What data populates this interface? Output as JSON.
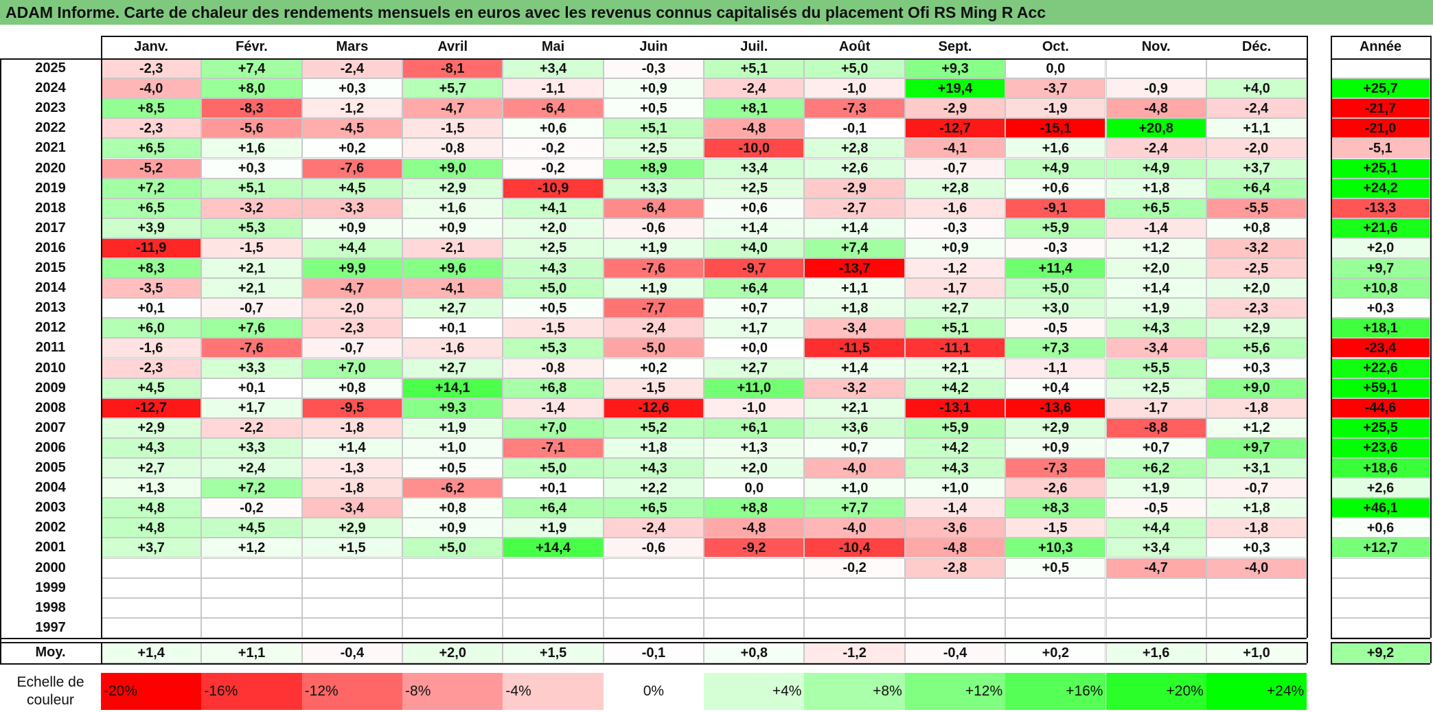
{
  "title": "ADAM Informe. Carte de chaleur des rendements mensuels en euros avec les revenus connus capitalisés du placement Ofi RS Ming R Acc",
  "colors": {
    "title_bg": "#7fc97f",
    "negative_max": "#ff0000",
    "zero": "#ffffff",
    "positive_max": "#00ff00"
  },
  "chart_data": {
    "type": "heatmap",
    "title": "ADAM Informe. Carte de chaleur des rendements mensuels en euros avec les revenus connus capitalisés du placement Ofi RS Ming R Acc",
    "months": [
      "Janv.",
      "Févr.",
      "Mars",
      "Avril",
      "Mai",
      "Juin",
      "Juil.",
      "Août",
      "Sept.",
      "Oct.",
      "Nov.",
      "Déc."
    ],
    "annual_header": "Année",
    "years": [
      "2025",
      "2024",
      "2023",
      "2022",
      "2021",
      "2020",
      "2019",
      "2018",
      "2017",
      "2016",
      "2015",
      "2014",
      "2013",
      "2012",
      "2011",
      "2010",
      "2009",
      "2008",
      "2007",
      "2006",
      "2005",
      "2004",
      "2003",
      "2002",
      "2001",
      "2000",
      "1999",
      "1998",
      "1997"
    ],
    "values": [
      [
        "-2,3",
        "+7,4",
        "-2,4",
        "-8,1",
        "+3,4",
        "-0,3",
        "+5,1",
        "+5,0",
        "+9,3",
        "0,0",
        "",
        ""
      ],
      [
        "-4,0",
        "+8,0",
        "+0,3",
        "+5,7",
        "-1,1",
        "+0,9",
        "-2,4",
        "-1,0",
        "+19,4",
        "-3,7",
        "-0,9",
        "+4,0"
      ],
      [
        "+8,5",
        "-8,3",
        "-1,2",
        "-4,7",
        "-6,4",
        "+0,5",
        "+8,1",
        "-7,3",
        "-2,9",
        "-1,9",
        "-4,8",
        "-2,4"
      ],
      [
        "-2,3",
        "-5,6",
        "-4,5",
        "-1,5",
        "+0,6",
        "+5,1",
        "-4,8",
        "-0,1",
        "-12,7",
        "-15,1",
        "+20,8",
        "+1,1"
      ],
      [
        "+6,5",
        "+1,6",
        "+0,2",
        "-0,8",
        "-0,2",
        "+2,5",
        "-10,0",
        "+2,8",
        "-4,1",
        "+1,6",
        "-2,4",
        "-2,0"
      ],
      [
        "-5,2",
        "+0,3",
        "-7,6",
        "+9,0",
        "-0,2",
        "+8,9",
        "+3,4",
        "+2,6",
        "-0,7",
        "+4,9",
        "+4,9",
        "+3,7"
      ],
      [
        "+7,2",
        "+5,1",
        "+4,5",
        "+2,9",
        "-10,9",
        "+3,3",
        "+2,5",
        "-2,9",
        "+2,8",
        "+0,6",
        "+1,8",
        "+6,4"
      ],
      [
        "+6,5",
        "-3,2",
        "-3,3",
        "+1,6",
        "+4,1",
        "-6,4",
        "+0,6",
        "-2,7",
        "-1,6",
        "-9,1",
        "+6,5",
        "-5,5"
      ],
      [
        "+3,9",
        "+5,3",
        "+0,9",
        "+0,9",
        "+2,0",
        "-0,6",
        "+1,4",
        "+1,4",
        "-0,3",
        "+5,9",
        "-1,4",
        "+0,8"
      ],
      [
        "-11,9",
        "-1,5",
        "+4,4",
        "-2,1",
        "+2,5",
        "+1,9",
        "+4,0",
        "+7,4",
        "+0,9",
        "-0,3",
        "+1,2",
        "-3,2"
      ],
      [
        "+8,3",
        "+2,1",
        "+9,9",
        "+9,6",
        "+4,3",
        "-7,6",
        "-9,7",
        "-13,7",
        "-1,2",
        "+11,4",
        "+2,0",
        "-2,5"
      ],
      [
        "-3,5",
        "+2,1",
        "-4,7",
        "-4,1",
        "+5,0",
        "+1,9",
        "+6,4",
        "+1,1",
        "-1,7",
        "+5,0",
        "+1,4",
        "+2,0"
      ],
      [
        "+0,1",
        "-0,7",
        "-2,0",
        "+2,7",
        "+0,5",
        "-7,7",
        "+0,7",
        "+1,8",
        "+2,7",
        "+3,0",
        "+1,9",
        "-2,3"
      ],
      [
        "+6,0",
        "+7,6",
        "-2,3",
        "+0,1",
        "-1,5",
        "-2,4",
        "+1,7",
        "-3,4",
        "+5,1",
        "-0,5",
        "+4,3",
        "+2,9"
      ],
      [
        "-1,6",
        "-7,6",
        "-0,7",
        "-1,6",
        "+5,3",
        "-5,0",
        "+0,0",
        "-11,5",
        "-11,1",
        "+7,3",
        "-3,4",
        "+5,6"
      ],
      [
        "-2,3",
        "+3,3",
        "+7,0",
        "+2,7",
        "-0,8",
        "+0,2",
        "+2,7",
        "+1,4",
        "+2,1",
        "-1,1",
        "+5,5",
        "+0,3"
      ],
      [
        "+4,5",
        "+0,1",
        "+0,8",
        "+14,1",
        "+6,8",
        "-1,5",
        "+11,0",
        "-3,2",
        "+4,2",
        "+0,4",
        "+2,5",
        "+9,0"
      ],
      [
        "-12,7",
        "+1,7",
        "-9,5",
        "+9,3",
        "-1,4",
        "-12,6",
        "-1,0",
        "+2,1",
        "-13,1",
        "-13,6",
        "-1,7",
        "-1,8"
      ],
      [
        "+2,9",
        "-2,2",
        "-1,8",
        "+1,9",
        "+7,0",
        "+5,2",
        "+6,1",
        "+3,6",
        "+5,9",
        "+2,9",
        "-8,8",
        "+1,2"
      ],
      [
        "+4,3",
        "+3,3",
        "+1,4",
        "+1,0",
        "-7,1",
        "+1,8",
        "+1,3",
        "+0,7",
        "+4,2",
        "+0,9",
        "+0,7",
        "+9,7"
      ],
      [
        "+2,7",
        "+2,4",
        "-1,3",
        "+0,5",
        "+5,0",
        "+4,3",
        "+2,0",
        "-4,0",
        "+4,3",
        "-7,3",
        "+6,2",
        "+3,1"
      ],
      [
        "+1,3",
        "+7,2",
        "-1,8",
        "-6,2",
        "+0,1",
        "+2,2",
        "0,0",
        "+1,0",
        "+1,0",
        "-2,6",
        "+1,9",
        "-0,7"
      ],
      [
        "+4,8",
        "-0,2",
        "-3,4",
        "+0,8",
        "+6,4",
        "+6,5",
        "+8,8",
        "+7,7",
        "-1,4",
        "+8,3",
        "-0,5",
        "+1,8"
      ],
      [
        "+4,8",
        "+4,5",
        "+2,9",
        "+0,9",
        "+1,9",
        "-2,4",
        "-4,8",
        "-4,0",
        "-3,6",
        "-1,5",
        "+4,4",
        "-1,8"
      ],
      [
        "+3,7",
        "+1,2",
        "+1,5",
        "+5,0",
        "+14,4",
        "-0,6",
        "-9,2",
        "-10,4",
        "-4,8",
        "+10,3",
        "+3,4",
        "+0,3"
      ],
      [
        "",
        "",
        "",
        "",
        "",
        "",
        "",
        "-0,2",
        "-2,8",
        "+0,5",
        "-4,7",
        "-4,0"
      ],
      [
        "",
        "",
        "",
        "",
        "",
        "",
        "",
        "",
        "",
        "",
        "",
        ""
      ],
      [
        "",
        "",
        "",
        "",
        "",
        "",
        "",
        "",
        "",
        "",
        "",
        ""
      ],
      [
        "",
        "",
        "",
        "",
        "",
        "",
        "",
        "",
        "",
        "",
        "",
        ""
      ]
    ],
    "annual": [
      "",
      "+25,7",
      "-21,7",
      "-21,0",
      "-5,1",
      "+25,1",
      "+24,2",
      "-13,3",
      "+21,6",
      "+2,0",
      "+9,7",
      "+10,8",
      "+0,3",
      "+18,1",
      "-23,4",
      "+22,6",
      "+59,1",
      "-44,6",
      "+25,5",
      "+23,6",
      "+18,6",
      "+2,6",
      "+46,1",
      "+0,6",
      "+12,7",
      "",
      "",
      "",
      ""
    ],
    "average_label": "Moy.",
    "averages": [
      "+1,4",
      "+1,1",
      "-0,4",
      "+2,0",
      "+1,5",
      "-0,1",
      "+0,8",
      "-1,2",
      "-0,4",
      "+0,2",
      "+1,6",
      "+1,0"
    ],
    "average_annual": "+9,2",
    "scale_label": "Echelle de couleur",
    "scale": [
      "-20%",
      "-16%",
      "-12%",
      "-8%",
      "-4%",
      "0%",
      "+4%",
      "+8%",
      "+12%",
      "+16%",
      "+20%",
      "+24%"
    ],
    "monthly_color_range": [
      -14,
      20
    ],
    "annual_color_range": [
      -20,
      24
    ],
    "grid": true,
    "legend_position": "bottom"
  }
}
